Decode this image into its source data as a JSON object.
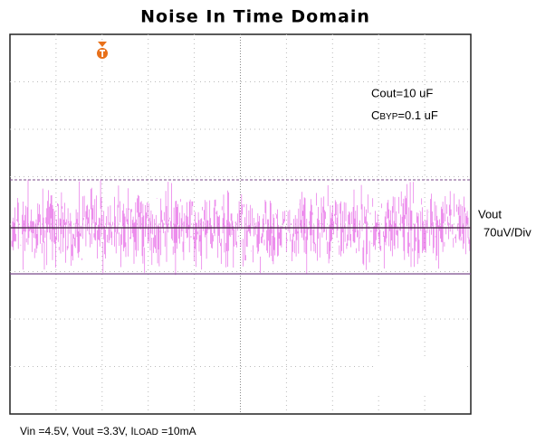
{
  "title": "Noise In Time Domain",
  "annotations": {
    "cout": "Cout=10 uF",
    "cbyp": {
      "prefix": "C",
      "sub": "BYP",
      "suffix": "=0.1 uF"
    }
  },
  "channel": {
    "name": "Vout",
    "scale": "70uV/Div"
  },
  "conditions": {
    "main": "Vin =4.5V,  Vout =3.3V,  I",
    "sub": "LOAD",
    "suffix": " =10mA"
  }
}
